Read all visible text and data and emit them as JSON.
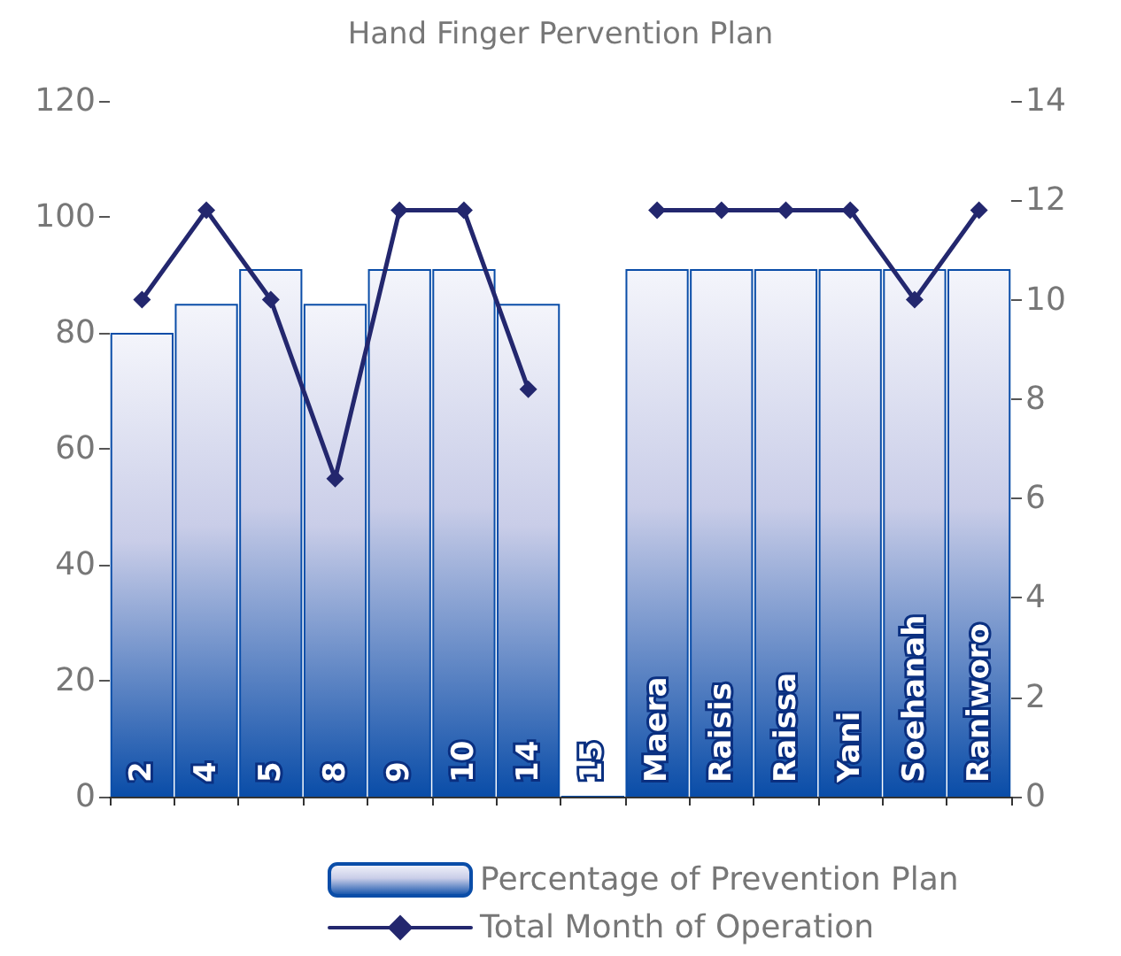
{
  "chart_data": {
    "type": "bar",
    "title": "Hand Finger Pervention Plan",
    "categories": [
      "2",
      "4",
      "5",
      "8",
      "9",
      "10",
      "14",
      "15",
      "Maera",
      "Raisis",
      "Raissa",
      "Yani",
      "Soehanah",
      "Raniworo"
    ],
    "series": [
      {
        "name": "Percentage of Prevention Plan",
        "color": "#0a4da8",
        "values": [
          80,
          85,
          91,
          85,
          91,
          91,
          85,
          0,
          91,
          91,
          91,
          91,
          91,
          91
        ]
      },
      {
        "name": "Total Month of Operation",
        "type": "line",
        "axis": "y2",
        "color": "#23276e",
        "values": [
          10,
          11.8,
          10,
          6.4,
          11.8,
          11.8,
          8.2,
          null,
          11.8,
          11.8,
          11.8,
          11.8,
          10,
          11.8
        ]
      }
    ],
    "ylim": [
      0,
      120
    ],
    "yticks": [
      0,
      20,
      40,
      60,
      80,
      100,
      120
    ],
    "y2lim": [
      0,
      14
    ],
    "y2ticks": [
      0,
      2,
      4,
      6,
      8,
      10,
      12,
      14
    ],
    "marker": "diamond",
    "line_style": "solid",
    "grid": false,
    "legend": "bottom"
  }
}
